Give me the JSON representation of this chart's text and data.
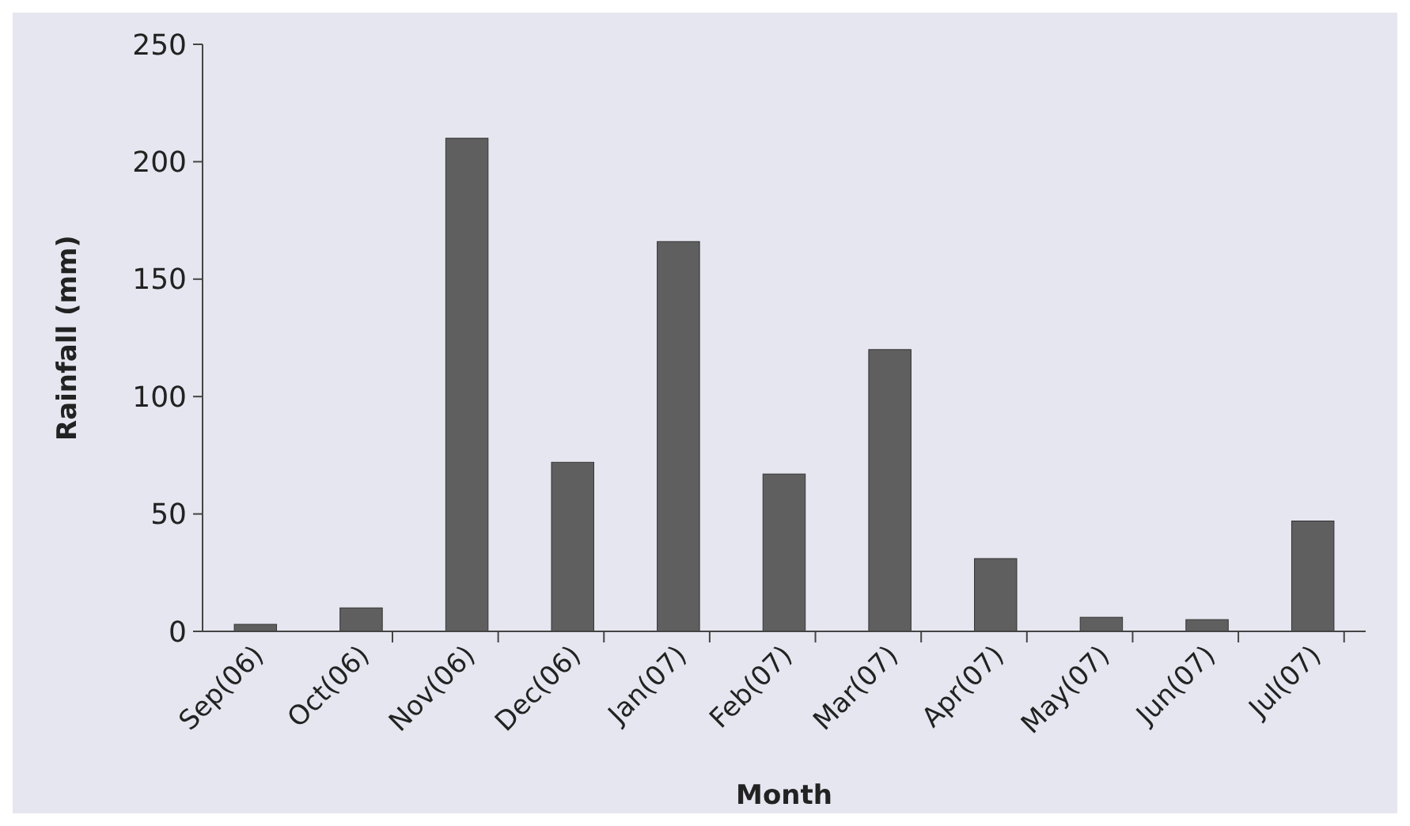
{
  "chart_data": {
    "type": "bar",
    "xlabel": "Month",
    "ylabel": "Rainfall (mm)",
    "categories": [
      "Sep(06)",
      "Oct(06)",
      "Nov(06)",
      "Dec(06)",
      "Jan(07)",
      "Feb(07)",
      "Mar(07)",
      "Apr(07)",
      "May(07)",
      "Jun(07)",
      "Jul(07)"
    ],
    "values": [
      3,
      10,
      210,
      72,
      166,
      67,
      120,
      31,
      6,
      5,
      47
    ],
    "color": "#5f5f5f",
    "ylim": [
      0,
      250
    ],
    "yticks": [
      0,
      50,
      100,
      150,
      200,
      250
    ],
    "grid": false
  }
}
